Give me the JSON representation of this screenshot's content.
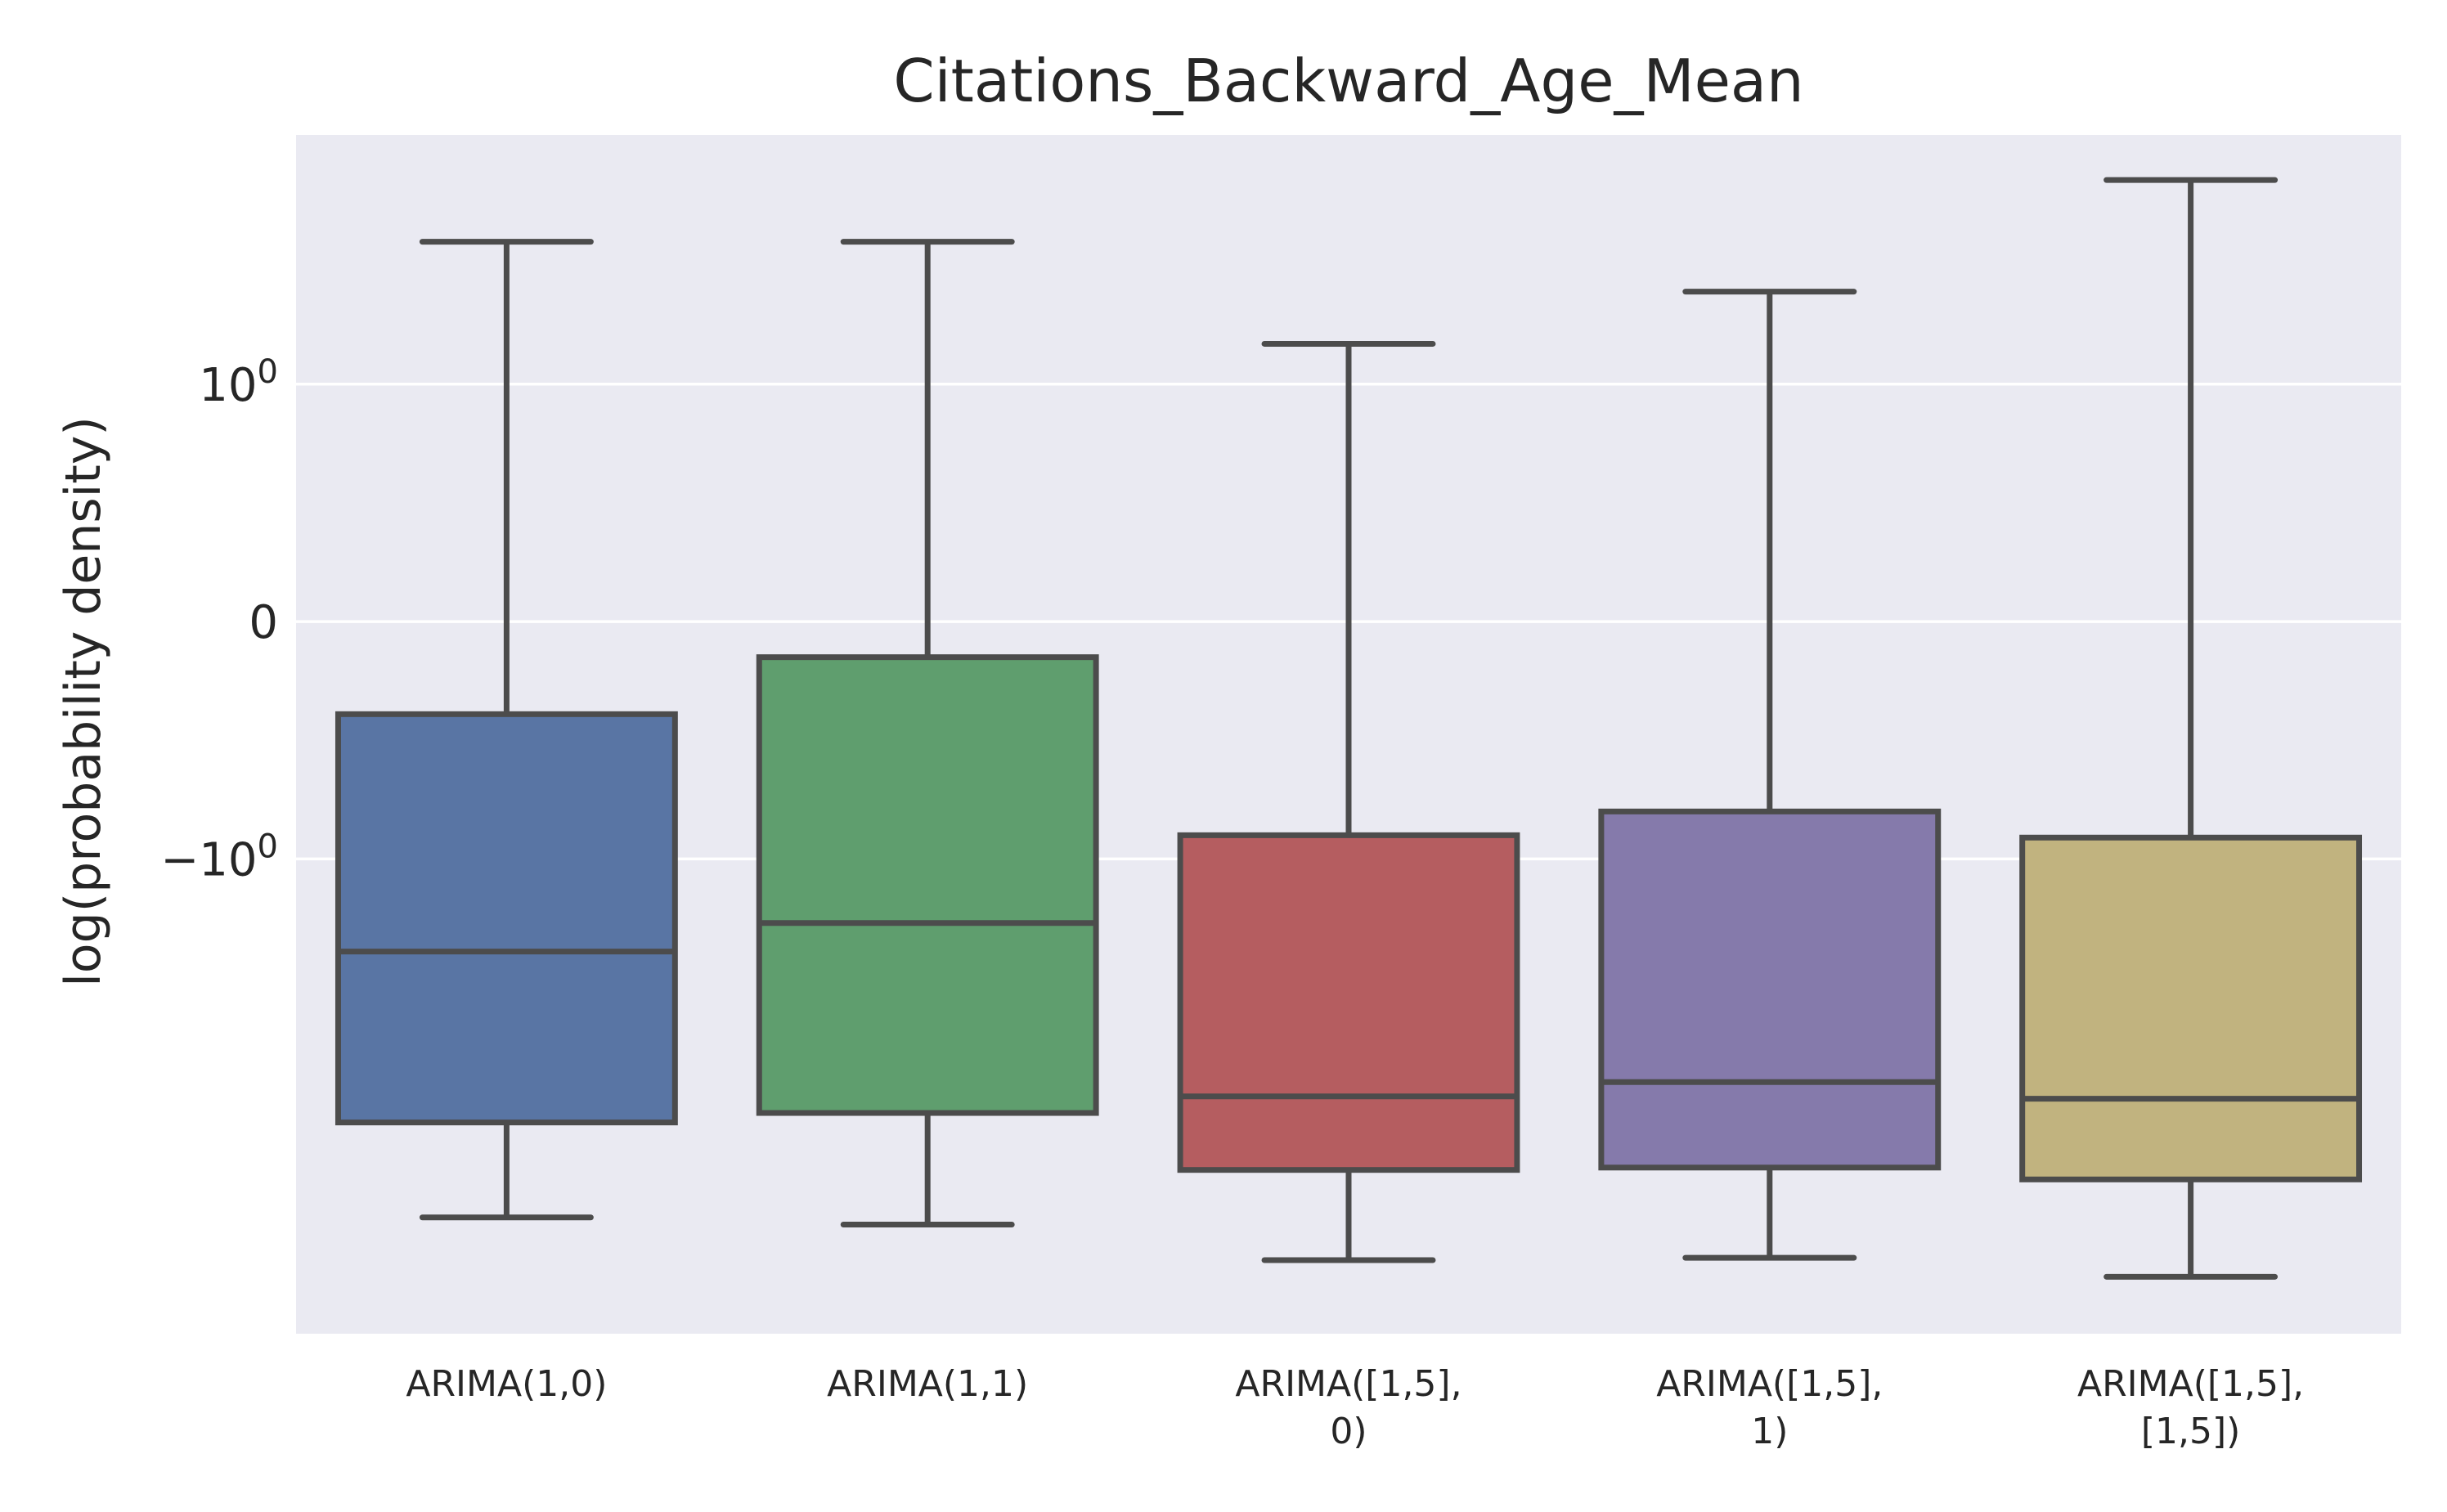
{
  "chart_data": {
    "type": "box",
    "title": "Citations_Backward_Age_Mean",
    "xlabel": "",
    "ylabel": "log(probability density)",
    "yscale": "symlog",
    "yticks": [
      {
        "value": 1,
        "label": "10",
        "exp": "0"
      },
      {
        "value": 0,
        "label": "0",
        "exp": ""
      },
      {
        "value": -1,
        "label": "−10",
        "exp": "0"
      }
    ],
    "ylim": [
      -3.0,
      2.05
    ],
    "grid": true,
    "categories": [
      [
        "ARIMA(1,0)"
      ],
      [
        "ARIMA(1,1)"
      ],
      [
        "ARIMA([1,5],",
        "0)"
      ],
      [
        "ARIMA([1,5],",
        "1)"
      ],
      [
        "ARIMA([1,5],",
        "[1,5])"
      ]
    ],
    "boxes": [
      {
        "name": "ARIMA(1,0)",
        "whislo": -2.51,
        "q1": -2.11,
        "med": -1.39,
        "q3": -0.39,
        "whishi": 1.6,
        "color": "#5975a4"
      },
      {
        "name": "ARIMA(1,1)",
        "whislo": -2.54,
        "q1": -2.07,
        "med": -1.27,
        "q3": -0.15,
        "whishi": 1.6,
        "color": "#5f9e6e"
      },
      {
        "name": "ARIMA([1,5],0)",
        "whislo": -2.69,
        "q1": -2.31,
        "med": -2.0,
        "q3": -0.9,
        "whishi": 1.17,
        "color": "#b55d60"
      },
      {
        "name": "ARIMA([1,5],1)",
        "whislo": -2.68,
        "q1": -2.3,
        "med": -1.94,
        "q3": -0.8,
        "whishi": 1.39,
        "color": "#857aab"
      },
      {
        "name": "ARIMA([1,5],[1,5])",
        "whislo": -2.76,
        "q1": -2.35,
        "med": -2.01,
        "q3": -0.91,
        "whishi": 1.86,
        "color": "#c1b37f"
      }
    ],
    "colors": {
      "axes_bg": "#eaeaf2",
      "grid": "#ffffff",
      "line": "#4c4c4c",
      "text": "#262626"
    }
  }
}
